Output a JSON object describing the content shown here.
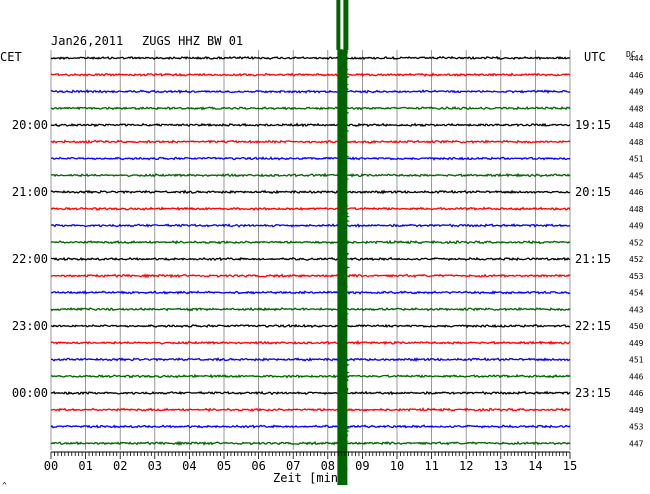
{
  "header": {
    "date": "Jan26,2011",
    "station": "ZUGS HHZ BW 01",
    "left_tz": "CET",
    "right_tz": "UTC",
    "dc_label": "DC",
    "x_axis_label": "Zeit [min]",
    "corner_mark": "^"
  },
  "colors": {
    "trace_cycle": [
      "#000000",
      "#ff0000",
      "#0000ff",
      "#006400"
    ],
    "event": "#006400",
    "grid": "#808080"
  },
  "chart_data": {
    "type": "line",
    "title": "Jan26,2011 ZUGS HHZ BW 01",
    "xlabel": "Zeit [min]",
    "xlim": [
      0,
      15
    ],
    "x_ticks": [
      "00",
      "01",
      "02",
      "03",
      "04",
      "05",
      "06",
      "07",
      "08",
      "09",
      "10",
      "11",
      "12",
      "13",
      "14",
      "15"
    ],
    "grid": true,
    "rows": 24,
    "minutes_per_row": 15,
    "left_time_labels": [
      {
        "row": 4,
        "label": "20:00"
      },
      {
        "row": 8,
        "label": "21:00"
      },
      {
        "row": 12,
        "label": "22:00"
      },
      {
        "row": 16,
        "label": "23:00"
      },
      {
        "row": 20,
        "label": "00:00"
      }
    ],
    "right_time_labels": [
      {
        "row": 4,
        "label": "19:15"
      },
      {
        "row": 8,
        "label": "20:15"
      },
      {
        "row": 12,
        "label": "21:15"
      },
      {
        "row": 16,
        "label": "22:15"
      },
      {
        "row": 20,
        "label": "23:15"
      }
    ],
    "dc_offsets": [
      "444",
      "446",
      "449",
      "448",
      "448",
      "448",
      "451",
      "445",
      "446",
      "448",
      "449",
      "452",
      "452",
      "453",
      "454",
      "443",
      "450",
      "449",
      "451",
      "446",
      "446",
      "449",
      "453",
      "447"
    ],
    "event_minute": 8.45
  }
}
